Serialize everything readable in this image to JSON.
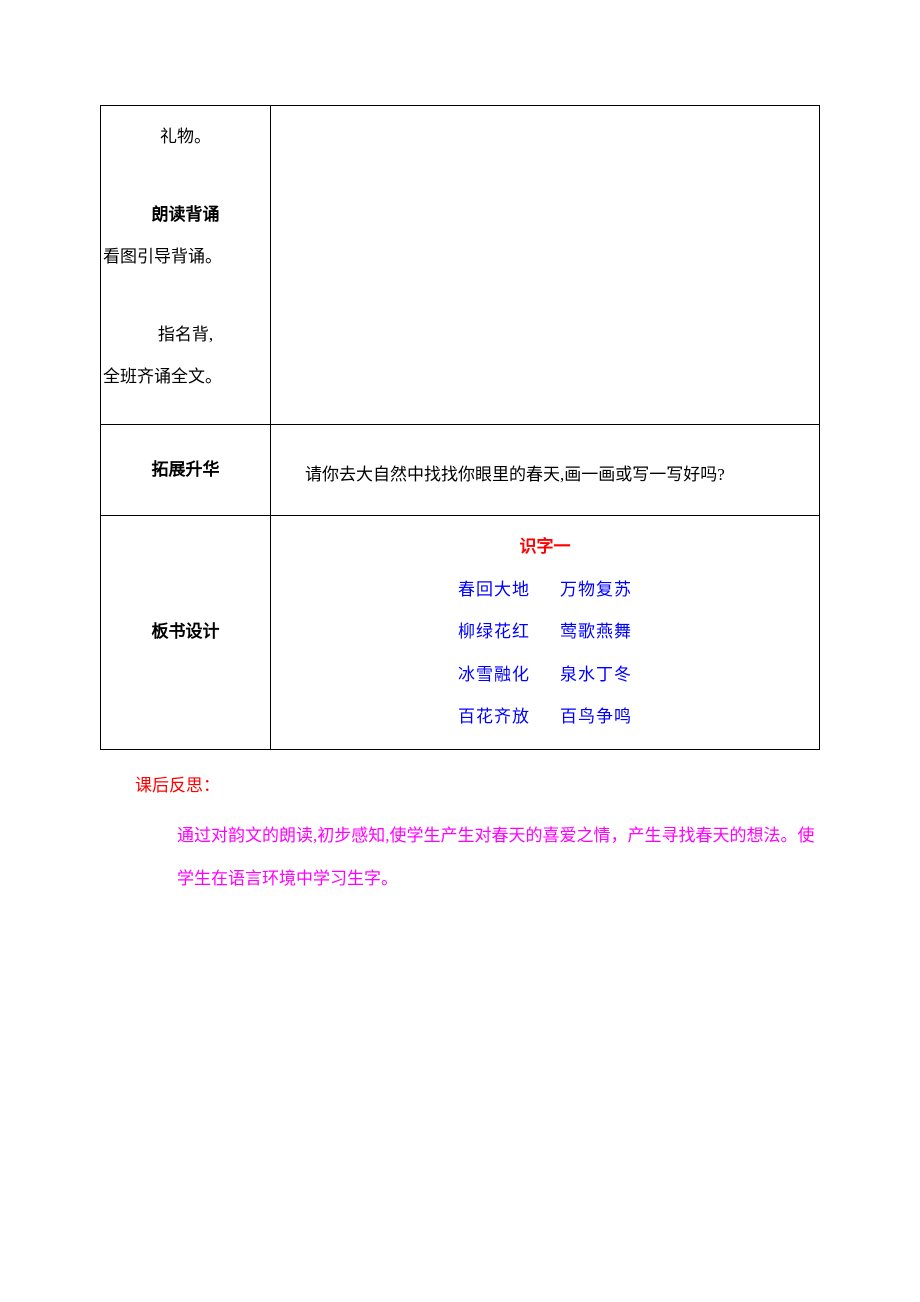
{
  "table": {
    "row1": {
      "line1": "礼物。",
      "heading": "朗读背诵",
      "line2": "看图引导背诵。",
      "line3": "指名背,",
      "line4": "全班齐诵全文。"
    },
    "row2": {
      "label": "拓展升华",
      "content": "请你去大自然中找找你眼里的春天,画一画或写一写好吗?"
    },
    "row3": {
      "label": "板书设计",
      "title": "识字一",
      "idioms": [
        {
          "left": "春回大地",
          "right": "万物复苏"
        },
        {
          "left": "柳绿花红",
          "right": "莺歌燕舞"
        },
        {
          "left": "冰雪融化",
          "right": "泉水丁冬"
        },
        {
          "left": "百花齐放",
          "right": "百鸟争鸣"
        }
      ]
    }
  },
  "after": {
    "title": "课后反思：",
    "body": "通过对韵文的朗读,初步感知,使学生产生对春天的喜爱之情，产生寻找春天的想法。使学生在语言环境中学习生字。"
  },
  "colors": {
    "red": "#ff0000",
    "blue": "#0000ff",
    "magenta": "#ff00ff",
    "black": "#000000",
    "background": "#ffffff"
  }
}
